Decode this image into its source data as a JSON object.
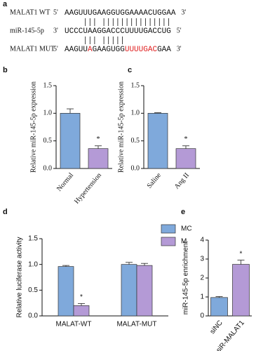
{
  "alignment": {
    "panel": "a",
    "rows": [
      {
        "label": "MALAT1 WT",
        "left": "5'",
        "segments": [
          {
            "text": "AAGUUUGAAGGUGGAAAACUGGAA",
            "color": "#111111"
          }
        ],
        "right": "3'"
      },
      {
        "label": "miR-145-5p",
        "left": "3'",
        "segments": [
          {
            "text": "UCCCUAAGGACCCUUUUGACCUG",
            "color": "#111111"
          }
        ],
        "right": "5'"
      },
      {
        "label": "MALAT1 MUT",
        "left": "5'",
        "segments": [
          {
            "text": "AAGUU",
            "color": "#111111"
          },
          {
            "text": "A",
            "color": "#e02020"
          },
          {
            "text": "GAAGUGG",
            "color": "#111111"
          },
          {
            "text": "UUUUGAC",
            "color": "#e02020"
          },
          {
            "text": "GAA",
            "color": "#111111"
          }
        ],
        "right": "3'"
      }
    ]
  },
  "chart_data": [
    {
      "type": "bar",
      "panel": "b",
      "ylabel": "Relative miR-145-5p expression",
      "categories": [
        "Normal",
        "Hypertension"
      ],
      "values": [
        1.0,
        0.36
      ],
      "errors": [
        0.08,
        0.05
      ],
      "colors": [
        "#7fa9db",
        "#b49ad6"
      ],
      "annotations": [
        null,
        "*"
      ],
      "ylim": [
        0,
        1.5
      ],
      "yticks": [
        {
          "value": 0,
          "label": "0.0"
        },
        {
          "value": 0.5,
          "label": "0.5"
        },
        {
          "value": 1,
          "label": "1.0"
        },
        {
          "value": 1.5,
          "label": "1.5"
        }
      ]
    },
    {
      "type": "bar",
      "panel": "c",
      "ylabel": "Relative miR-145-5p expression",
      "categories": [
        "Saline",
        "Ang II"
      ],
      "values": [
        1.0,
        0.36
      ],
      "errors": [
        0.01,
        0.05
      ],
      "colors": [
        "#7fa9db",
        "#b49ad6"
      ],
      "annotations": [
        null,
        "*"
      ],
      "ylim": [
        0,
        1.5
      ],
      "yticks": [
        {
          "value": 0,
          "label": "0.0"
        },
        {
          "value": 0.5,
          "label": "0.5"
        },
        {
          "value": 1,
          "label": "1.0"
        },
        {
          "value": 1.5,
          "label": "1.5"
        }
      ]
    },
    {
      "type": "bar",
      "panel": "d",
      "ylabel": "Relative luciferase activity",
      "categories": [
        "MALAT-WT",
        "MALAT-MUT"
      ],
      "series": [
        {
          "name": "MC",
          "color": "#7fa9db",
          "values": [
            0.96,
            1.0
          ],
          "errors": [
            0.02,
            0.04
          ],
          "annotations": [
            null,
            null
          ]
        },
        {
          "name": "M",
          "color": "#b49ad6",
          "values": [
            0.2,
            0.98
          ],
          "errors": [
            0.04,
            0.04
          ],
          "annotations": [
            "*",
            null
          ]
        }
      ],
      "legend": "upper right",
      "ylim": [
        0,
        1.5
      ],
      "yticks": [
        {
          "value": 0,
          "label": "0.0"
        },
        {
          "value": 0.5,
          "label": "0.5"
        },
        {
          "value": 1,
          "label": "1.0"
        },
        {
          "value": 1.5,
          "label": "1.5"
        }
      ]
    },
    {
      "type": "bar",
      "panel": "e",
      "ylabel": "miR-145-5p enrichment",
      "categories": [
        "siNC",
        "siR-MALAT1"
      ],
      "values": [
        0.97,
        2.72
      ],
      "errors": [
        0.05,
        0.22
      ],
      "colors": [
        "#7fa9db",
        "#b49ad6"
      ],
      "annotations": [
        null,
        "*"
      ],
      "ylim": [
        0,
        4
      ],
      "yticks": [
        0,
        1,
        2,
        3,
        4
      ]
    }
  ]
}
